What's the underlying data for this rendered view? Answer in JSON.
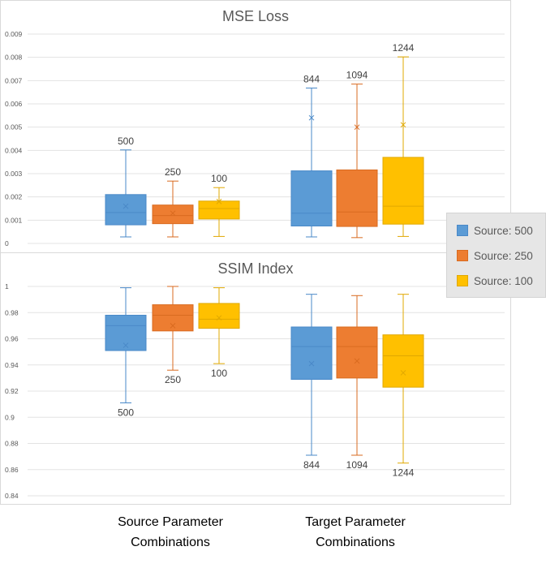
{
  "chart_data": [
    {
      "type": "box",
      "title": "MSE Loss",
      "ylim": [
        0,
        0.009
      ],
      "yticks": [
        "0",
        "0.001",
        "0.002",
        "0.003",
        "0.004",
        "0.005",
        "0.006",
        "0.007",
        "0.008",
        "0.009"
      ],
      "grid": true,
      "groups": [
        "Source Parameter Combinations",
        "Target Parameter Combinations"
      ],
      "series": [
        {
          "name": "Source: 500",
          "color": "#5b9bd5",
          "stroke": "#4a89c8",
          "boxes": [
            {
              "group": 0,
              "min": 0.00028,
              "q1": 0.0008,
              "median": 0.00133,
              "q3": 0.0021,
              "max": 0.00402,
              "mean": 0.0016,
              "label": "500"
            },
            {
              "group": 1,
              "min": 0.00028,
              "q1": 0.00075,
              "median": 0.0013,
              "q3": 0.00312,
              "max": 0.00668,
              "mean": 0.0054,
              "label": "844"
            }
          ]
        },
        {
          "name": "Source: 250",
          "color": "#ed7d31",
          "stroke": "#d96b20",
          "boxes": [
            {
              "group": 0,
              "min": 0.00028,
              "q1": 0.00085,
              "median": 0.0012,
              "q3": 0.00165,
              "max": 0.00268,
              "mean": 0.0013,
              "label": "250"
            },
            {
              "group": 1,
              "min": 0.00025,
              "q1": 0.00073,
              "median": 0.00135,
              "q3": 0.00316,
              "max": 0.00685,
              "mean": 0.005,
              "label": "1094"
            }
          ]
        },
        {
          "name": "Source: 100",
          "color": "#ffc000",
          "stroke": "#e0a800",
          "boxes": [
            {
              "group": 0,
              "min": 0.0003,
              "q1": 0.00105,
              "median": 0.0015,
              "q3": 0.00182,
              "max": 0.0024,
              "mean": 0.0018,
              "label": "100"
            },
            {
              "group": 1,
              "min": 0.0003,
              "q1": 0.00083,
              "median": 0.0016,
              "q3": 0.0037,
              "max": 0.00802,
              "mean": 0.0051,
              "label": "1244"
            }
          ]
        }
      ]
    },
    {
      "type": "box",
      "title": "SSIM Index",
      "ylim": [
        0.84,
        1
      ],
      "yticks": [
        "0.84",
        "0.86",
        "0.88",
        "0.9",
        "0.92",
        "0.94",
        "0.96",
        "0.98",
        "1"
      ],
      "grid": true,
      "groups": [
        "Source Parameter Combinations",
        "Target Parameter Combinations"
      ],
      "series": [
        {
          "name": "Source: 500",
          "color": "#5b9bd5",
          "stroke": "#4a89c8",
          "boxes": [
            {
              "group": 0,
              "min": 0.911,
              "q1": 0.951,
              "median": 0.97,
              "q3": 0.978,
              "max": 0.999,
              "mean": 0.955,
              "label": "500"
            },
            {
              "group": 1,
              "min": 0.871,
              "q1": 0.929,
              "median": 0.954,
              "q3": 0.969,
              "max": 0.994,
              "mean": 0.941,
              "label": "844"
            }
          ]
        },
        {
          "name": "Source: 250",
          "color": "#ed7d31",
          "stroke": "#d96b20",
          "boxes": [
            {
              "group": 0,
              "min": 0.936,
              "q1": 0.966,
              "median": 0.978,
              "q3": 0.986,
              "max": 1.0,
              "mean": 0.97,
              "label": "250"
            },
            {
              "group": 1,
              "min": 0.871,
              "q1": 0.93,
              "median": 0.954,
              "q3": 0.969,
              "max": 0.993,
              "mean": 0.943,
              "label": "1094"
            }
          ]
        },
        {
          "name": "Source: 100",
          "color": "#ffc000",
          "stroke": "#e0a800",
          "boxes": [
            {
              "group": 0,
              "min": 0.941,
              "q1": 0.968,
              "median": 0.975,
              "q3": 0.987,
              "max": 0.999,
              "mean": 0.976,
              "label": "100"
            },
            {
              "group": 1,
              "min": 0.865,
              "q1": 0.923,
              "median": 0.947,
              "q3": 0.963,
              "max": 0.994,
              "mean": 0.934,
              "label": "1244"
            }
          ]
        }
      ]
    }
  ],
  "legend": {
    "placement": "right",
    "items": [
      {
        "label": "Source: 500",
        "color": "#5b9bd5",
        "stroke": "#4a89c8"
      },
      {
        "label": "Source: 250",
        "color": "#ed7d31",
        "stroke": "#d96b20"
      },
      {
        "label": "Source: 100",
        "color": "#ffc000",
        "stroke": "#e0a800"
      }
    ]
  },
  "x_categories": [
    {
      "line1": "Source Parameter",
      "line2": "Combinations"
    },
    {
      "line1": "Target Parameter",
      "line2": "Combinations"
    }
  ]
}
